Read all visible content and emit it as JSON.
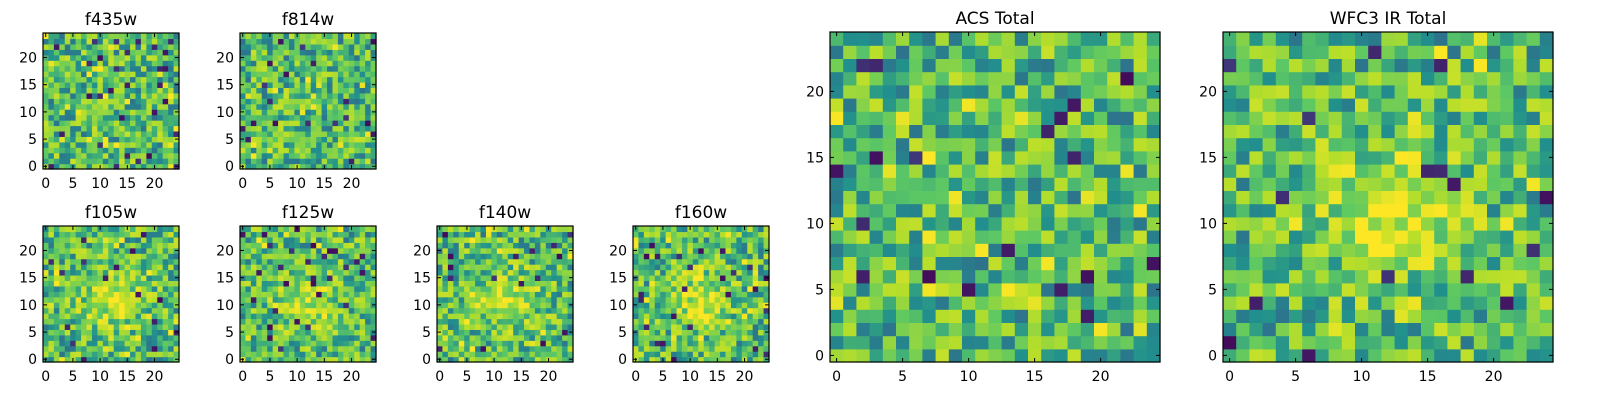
{
  "chart_data": [
    {
      "type": "heatmap",
      "title": "f435w",
      "size": 25,
      "xlim": [
        0,
        24
      ],
      "ylim": [
        0,
        24
      ],
      "xticks": [
        0,
        5,
        10,
        15,
        20
      ],
      "yticks": [
        0,
        5,
        10,
        15,
        20
      ],
      "colormap": "viridis",
      "values": "random 25x25 noise field"
    },
    {
      "type": "heatmap",
      "title": "f814w",
      "size": 25,
      "xlim": [
        0,
        24
      ],
      "ylim": [
        0,
        24
      ],
      "xticks": [
        0,
        5,
        10,
        15,
        20
      ],
      "yticks": [
        0,
        5,
        10,
        15,
        20
      ],
      "colormap": "viridis",
      "values": "random 25x25 noise field"
    },
    {
      "type": "heatmap",
      "title": "f105w",
      "size": 25,
      "xlim": [
        0,
        24
      ],
      "ylim": [
        0,
        24
      ],
      "xticks": [
        0,
        5,
        10,
        15,
        20
      ],
      "yticks": [
        0,
        5,
        10,
        15,
        20
      ],
      "colormap": "viridis",
      "values": "25x25 noise field with central bright source"
    },
    {
      "type": "heatmap",
      "title": "f125w",
      "size": 25,
      "xlim": [
        0,
        24
      ],
      "ylim": [
        0,
        24
      ],
      "xticks": [
        0,
        5,
        10,
        15,
        20
      ],
      "yticks": [
        0,
        5,
        10,
        15,
        20
      ],
      "colormap": "viridis",
      "values": "25x25 noise field with central bright source"
    },
    {
      "type": "heatmap",
      "title": "f140w",
      "size": 25,
      "xlim": [
        0,
        24
      ],
      "ylim": [
        0,
        24
      ],
      "xticks": [
        0,
        5,
        10,
        15,
        20
      ],
      "yticks": [
        0,
        5,
        10,
        15,
        20
      ],
      "colormap": "viridis",
      "values": "25x25 noise field with central bright source"
    },
    {
      "type": "heatmap",
      "title": "f160w",
      "size": 25,
      "xlim": [
        0,
        24
      ],
      "ylim": [
        0,
        24
      ],
      "xticks": [
        0,
        5,
        10,
        15,
        20
      ],
      "yticks": [
        0,
        5,
        10,
        15,
        20
      ],
      "colormap": "viridis",
      "values": "25x25 noise field with central bright source"
    },
    {
      "type": "heatmap",
      "title": "ACS Total",
      "size": 25,
      "xlim": [
        0,
        24
      ],
      "ylim": [
        0,
        24
      ],
      "xticks": [
        0,
        5,
        10,
        15,
        20
      ],
      "yticks": [
        0,
        5,
        10,
        15,
        20
      ],
      "colormap": "viridis",
      "values": "random 25x25 noise field"
    },
    {
      "type": "heatmap",
      "title": "WFC3 IR Total",
      "size": 25,
      "xlim": [
        0,
        24
      ],
      "ylim": [
        0,
        24
      ],
      "xticks": [
        0,
        5,
        10,
        15,
        20
      ],
      "yticks": [
        0,
        5,
        10,
        15,
        20
      ],
      "colormap": "viridis",
      "values": "25x25 noise field with central bright source"
    }
  ],
  "colors": {
    "viridis": [
      "#440154",
      "#3b528b",
      "#21908d",
      "#5dc863",
      "#b5de2b",
      "#fde725"
    ]
  }
}
